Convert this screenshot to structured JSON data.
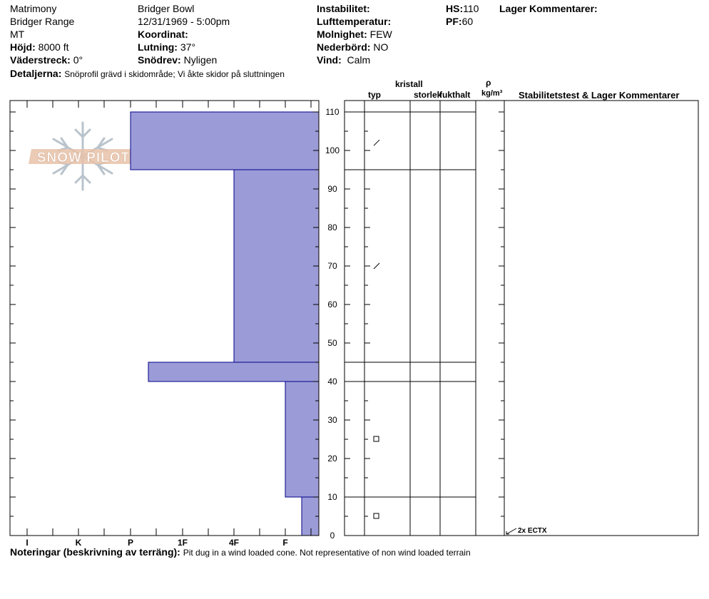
{
  "header": {
    "location": "Matrimony",
    "range": "Bridger Range",
    "state": "MT",
    "elevation_label": "Höjd:",
    "elevation_value": "8000 ft",
    "aspect_label": "Väderstreck:",
    "aspect_value": "0°",
    "area": "Bridger Bowl",
    "datetime": "12/31/1969 - 5:00pm",
    "coordinate_label": "Koordinat:",
    "slope_label": "Lutning:",
    "slope_value": "37°",
    "drift_label": "Snödrev:",
    "drift_value": "Nyligen",
    "instability_label": "Instabilitet:",
    "airtemp_label": "Lufttemperatur:",
    "sky_label": "Molnighet:",
    "sky_value": "FEW",
    "precip_label": "Nederbörd:",
    "precip_value": "NO",
    "wind_label": "Vind:",
    "wind_value": "Calm",
    "hs_label": "HS:",
    "hs_value": "110",
    "pf_label": "PF:",
    "pf_value": "60",
    "layer_comments_label": "Lager Kommentarer:",
    "details_label": "Detaljerna:",
    "details_value": "Snöprofil grävd i skidområde; Vi åkte skidor på sluttningen"
  },
  "table_headers": {
    "crystal": "kristall",
    "type": "typ",
    "size": "storlek",
    "moisture": "fukthalt",
    "rho": "ρ",
    "density_unit": "kg/m³",
    "stability": "Stabilitetstest & Lager Kommentarer"
  },
  "watermark": "SNOW PILOT",
  "footer": {
    "notes_label": "Noteringar (beskrivning av terräng):",
    "notes_value": "Pit dug in a wind loaded cone. Not representative of non wind loaded terrain"
  },
  "chart_data": {
    "type": "bar",
    "x_categories": [
      "I",
      "K",
      "P",
      "1F",
      "4F",
      "F"
    ],
    "y_ticks": [
      0,
      10,
      20,
      30,
      40,
      50,
      60,
      70,
      80,
      90,
      100,
      110
    ],
    "ylim": [
      0,
      113
    ],
    "layers": [
      {
        "bottom": 95,
        "top": 110,
        "hardness": "P"
      },
      {
        "bottom": 45,
        "top": 95,
        "hardness": "4F"
      },
      {
        "bottom": 40,
        "top": 45,
        "hardness": "P-"
      },
      {
        "bottom": 10,
        "top": 40,
        "hardness": "F"
      },
      {
        "bottom": 0,
        "top": 10,
        "hardness": "F-"
      }
    ],
    "grain_symbols": [
      {
        "height": 102,
        "symbol": "decomposing"
      },
      {
        "height": 70,
        "symbol": "decomposing"
      },
      {
        "height": 25,
        "symbol": "faceted"
      },
      {
        "height": 5,
        "symbol": "faceted"
      }
    ],
    "stability_tests": [
      {
        "height": 0,
        "label": "2x ECTX"
      }
    ],
    "colors": {
      "bar": "#9b9bd7",
      "bar_edge": "#00008b"
    }
  }
}
